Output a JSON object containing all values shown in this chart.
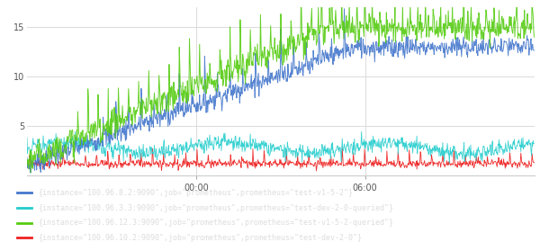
{
  "title": "",
  "xlabel": "",
  "ylabel": "",
  "ylim": [
    0,
    17
  ],
  "xlim": [
    0,
    1000
  ],
  "yticks": [
    5,
    10,
    15
  ],
  "xtick_positions": [
    333,
    666
  ],
  "xtick_labels": [
    "00:00",
    "06:00"
  ],
  "background_color": "#ffffff",
  "plot_bg_color": "#ffffff",
  "grid_color": "#dddddd",
  "series": [
    {
      "label": "{instance=\"100.96.8.2:9090\",job=\"prometheus\",prometheus=\"test-v1-5-2\"}",
      "color": "#4477cc"
    },
    {
      "label": "{instance=\"100.96.3.3:9090\",job=\"prometheus\",prometheus=\"test-dev-2-0-queried\"}",
      "color": "#22cccc"
    },
    {
      "label": "{instance=\"100.96.12.3:9090\",job=\"prometheus\",prometheus=\"test-v1-5-2-queried\"}",
      "color": "#55cc11"
    },
    {
      "label": "{instance=\"100.96.10.2:9090\",job=\"prometheus\",prometheus=\"test-dev-2-0\"}",
      "color": "#ee2222"
    }
  ],
  "legend_bg": "#111111",
  "legend_text_color": "#dddddd",
  "legend_fontsize": 6.0,
  "figsize": [
    6.0,
    2.79
  ],
  "dpi": 100
}
